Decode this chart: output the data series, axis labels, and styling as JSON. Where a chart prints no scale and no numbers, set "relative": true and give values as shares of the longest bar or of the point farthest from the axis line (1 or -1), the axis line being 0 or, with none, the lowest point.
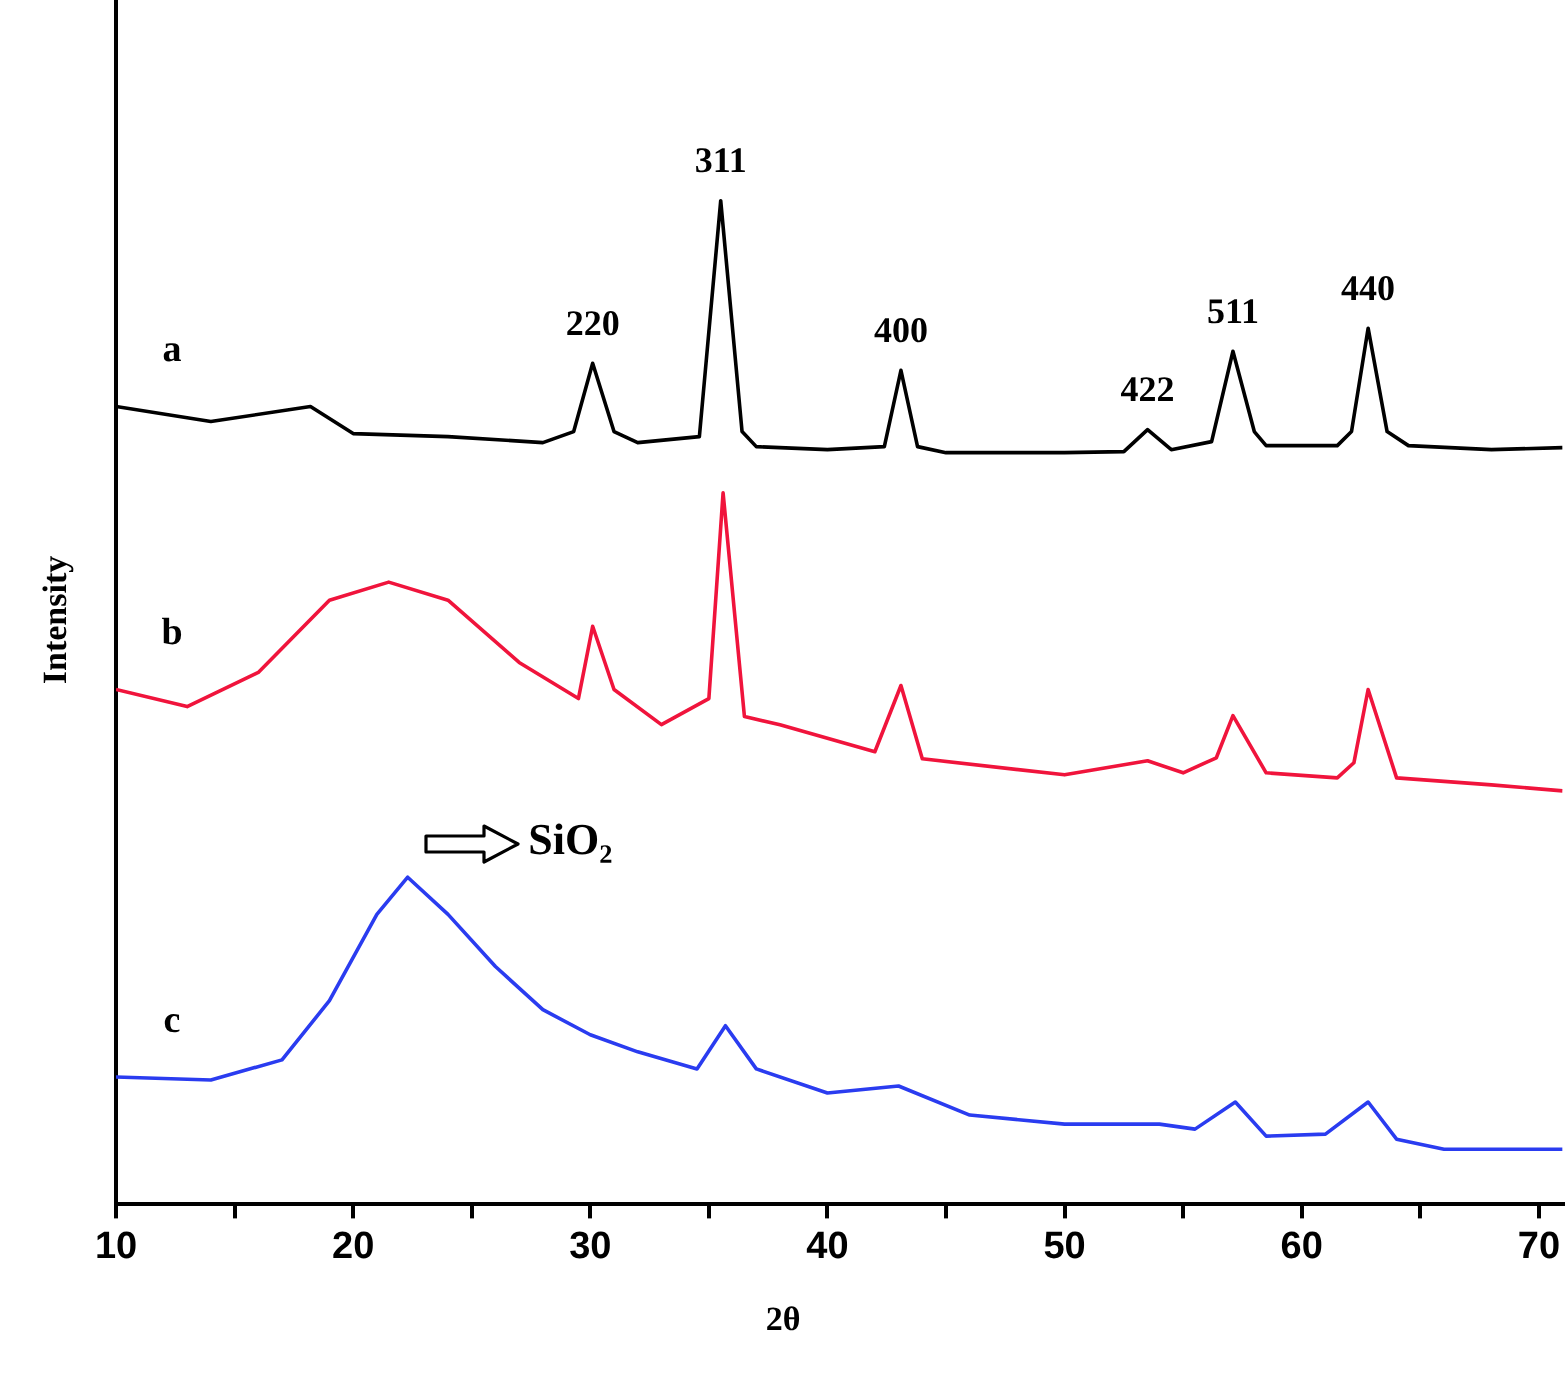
{
  "chart_data": {
    "type": "line",
    "xlabel": "2θ",
    "ylabel": "Intensity",
    "relative": true,
    "xlim": [
      10,
      71
    ],
    "xticks": [
      10,
      {
        "value": 15,
        "label": null
      },
      20,
      {
        "value": 25,
        "label": null
      },
      30,
      {
        "value": 35,
        "label": null
      },
      40,
      {
        "value": 45,
        "label": null
      },
      50,
      {
        "value": 55,
        "label": null
      },
      60,
      {
        "value": 65,
        "label": null
      },
      70
    ],
    "series": [
      {
        "name": "a",
        "color": "#000000",
        "x": [
          10,
          14,
          18.2,
          20,
          24,
          28,
          29.3,
          30.1,
          31,
          32,
          34.6,
          35.5,
          36.4,
          37,
          40,
          42.4,
          43.1,
          43.8,
          45,
          50,
          52.5,
          53.5,
          54.5,
          56.2,
          57.1,
          58,
          58.5,
          61.5,
          62.1,
          62.8,
          63.6,
          64.5,
          68,
          71
        ],
        "values": [
          0.795,
          0.78,
          0.795,
          0.768,
          0.765,
          0.759,
          0.77,
          0.838,
          0.77,
          0.759,
          0.765,
          1.0,
          0.77,
          0.755,
          0.752,
          0.755,
          0.831,
          0.755,
          0.749,
          0.749,
          0.75,
          0.772,
          0.752,
          0.76,
          0.85,
          0.77,
          0.756,
          0.756,
          0.77,
          0.873,
          0.77,
          0.756,
          0.752,
          0.754
        ]
      },
      {
        "name": "b",
        "color": "#f0143c",
        "x": [
          10,
          13,
          16,
          19,
          21.5,
          24,
          27,
          29.5,
          30.1,
          31,
          33,
          35,
          35.6,
          36.5,
          38,
          42,
          43.1,
          44,
          50,
          53.5,
          55,
          56.4,
          57.1,
          58.5,
          61.5,
          62.2,
          62.8,
          64,
          68,
          71
        ],
        "values": [
          0.513,
          0.496,
          0.53,
          0.602,
          0.62,
          0.602,
          0.54,
          0.504,
          0.576,
          0.513,
          0.478,
          0.504,
          0.709,
          0.486,
          0.478,
          0.451,
          0.517,
          0.444,
          0.428,
          0.442,
          0.43,
          0.445,
          0.487,
          0.43,
          0.425,
          0.44,
          0.513,
          0.425,
          0.418,
          0.412
        ]
      },
      {
        "name": "c",
        "color": "#2a3cf0",
        "x": [
          10,
          14,
          17,
          19,
          21,
          22.3,
          24,
          26,
          28,
          30,
          32,
          34.5,
          35.7,
          37,
          40,
          43,
          46,
          50,
          54,
          55.5,
          57.2,
          58.5,
          61,
          62.8,
          64,
          66,
          71
        ],
        "values": [
          0.127,
          0.124,
          0.144,
          0.203,
          0.289,
          0.326,
          0.289,
          0.237,
          0.194,
          0.169,
          0.152,
          0.135,
          0.178,
          0.135,
          0.111,
          0.118,
          0.089,
          0.08,
          0.08,
          0.075,
          0.102,
          0.068,
          0.07,
          0.102,
          0.065,
          0.055,
          0.055
        ]
      }
    ],
    "annotations": [
      {
        "text": "220",
        "x": 30.1,
        "y": 0.838
      },
      {
        "text": "311",
        "x": 35.5,
        "y": 1.0
      },
      {
        "text": "400",
        "x": 43.1,
        "y": 0.831
      },
      {
        "text": "422",
        "x": 53.5,
        "y": 0.772
      },
      {
        "text": "511",
        "x": 57.1,
        "y": 0.85
      },
      {
        "text": "440",
        "x": 62.8,
        "y": 0.873
      },
      "SiO₂"
    ]
  }
}
